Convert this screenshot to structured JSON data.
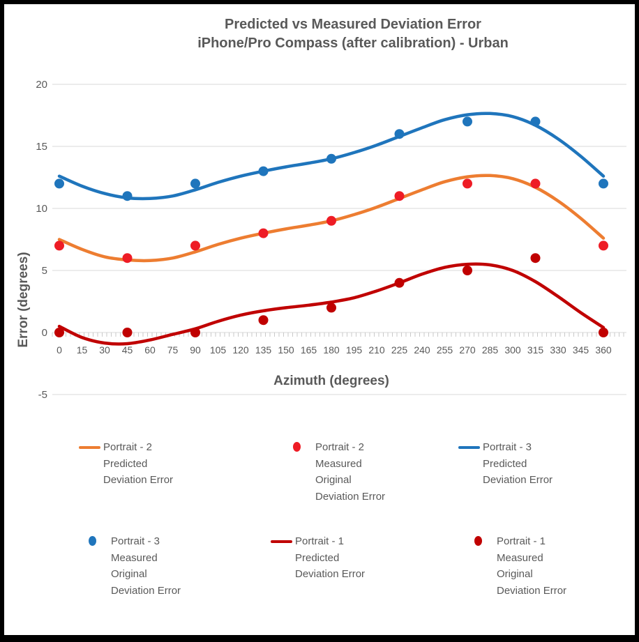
{
  "title": {
    "line1": "Predicted vs Measured Deviation Error",
    "line2": "iPhone/Pro Compass (after calibration) - Urban"
  },
  "axes": {
    "y_title": "Error (degrees)",
    "x_title": "Azimuth (degrees)"
  },
  "colors": {
    "text_gray": "#595959",
    "gridline": "#D9D9D9",
    "tick": "#C9C9C9",
    "blue": "#1F75BC",
    "orange": "#ED7D31",
    "bright_red": "#EE1C25",
    "dark_red": "#C00000"
  },
  "chart_data": {
    "type": "line",
    "title": "Predicted vs Measured Deviation Error iPhone/Pro Compass (after calibration) - Urban",
    "xlabel": "Azimuth (degrees)",
    "ylabel": "Error (degrees)",
    "xlim": [
      0,
      360
    ],
    "ylim": [
      -5,
      20
    ],
    "grid": "horizontal",
    "legend_position": "bottom",
    "x_tick_labels": [
      "0",
      "15",
      "30",
      "45",
      "60",
      "75",
      "90",
      "105",
      "120",
      "135",
      "150",
      "165",
      "180",
      "195",
      "210",
      "225",
      "240",
      "255",
      "270",
      "285",
      "300",
      "315",
      "330",
      "345",
      "360"
    ],
    "y_tick_values": [
      20,
      15,
      10,
      5,
      0,
      -5
    ],
    "gridline_values": [
      20,
      15,
      10,
      5,
      0,
      -5
    ],
    "curve_x_step": 15,
    "measured_x": [
      0,
      45,
      90,
      135,
      180,
      225,
      270,
      315,
      360
    ],
    "series": [
      {
        "name": "Portrait - 2 Predicted Deviation Error",
        "kind": "curve",
        "color": "#ED7D31",
        "values": [
          7.5,
          6.7,
          6.1,
          5.85,
          5.8,
          6.0,
          6.5,
          7.1,
          7.6,
          8.0,
          8.35,
          8.65,
          9.0,
          9.5,
          10.1,
          10.8,
          11.5,
          12.15,
          12.55,
          12.65,
          12.4,
          11.7,
          10.6,
          9.2,
          7.6
        ]
      },
      {
        "name": "Portrait - 2 Measured Original Deviation Error",
        "kind": "points",
        "color": "#EE1C25",
        "values": [
          7,
          6,
          7,
          8,
          9,
          11,
          12,
          12,
          7
        ]
      },
      {
        "name": "Portrait - 3 Predicted Deviation Error",
        "kind": "curve",
        "color": "#1F75BC",
        "values": [
          12.6,
          11.8,
          11.2,
          10.85,
          10.8,
          11.0,
          11.5,
          12.1,
          12.6,
          13.0,
          13.35,
          13.65,
          14.0,
          14.5,
          15.1,
          15.8,
          16.5,
          17.15,
          17.55,
          17.65,
          17.4,
          16.7,
          15.6,
          14.2,
          12.6
        ]
      },
      {
        "name": "Portrait - 3 Measured Original Deviation Error",
        "kind": "points",
        "color": "#1F75BC",
        "values": [
          12,
          11,
          12,
          13,
          14,
          16,
          17,
          17,
          12
        ]
      },
      {
        "name": "Portrait - 1 Predicted Deviation Error",
        "kind": "curve",
        "color": "#C00000",
        "values": [
          0.5,
          -0.4,
          -0.85,
          -0.9,
          -0.6,
          -0.15,
          0.3,
          0.9,
          1.4,
          1.75,
          2.0,
          2.2,
          2.45,
          2.8,
          3.35,
          4.0,
          4.7,
          5.25,
          5.5,
          5.45,
          5.0,
          4.1,
          2.9,
          1.6,
          0.4
        ]
      },
      {
        "name": "Portrait - 1 Measured Original Deviation Error",
        "kind": "points",
        "color": "#C00000",
        "values": [
          0,
          0,
          0,
          1,
          2,
          4,
          5,
          6,
          0
        ]
      }
    ]
  },
  "legend": {
    "items": [
      {
        "id": "portrait-2-predicted",
        "swatch": "line",
        "color": "#ED7D31",
        "lines": [
          "Portrait - 2",
          "Predicted",
          "Deviation Error"
        ]
      },
      {
        "id": "portrait-2-measured",
        "swatch": "dot",
        "color": "#EE1C25",
        "lines": [
          "Portrait - 2",
          "Measured",
          "Original",
          "Deviation Error"
        ]
      },
      {
        "id": "portrait-3-predicted",
        "swatch": "line",
        "color": "#1F75BC",
        "lines": [
          "Portrait - 3",
          "Predicted",
          "Deviation Error"
        ]
      },
      {
        "id": "portrait-3-measured",
        "swatch": "dot",
        "color": "#1F75BC",
        "lines": [
          "Portrait - 3",
          "Measured",
          "Original",
          "Deviation Error"
        ]
      },
      {
        "id": "portrait-1-predicted",
        "swatch": "line",
        "color": "#C00000",
        "lines": [
          "Portrait - 1",
          "Predicted",
          "Deviation Error"
        ]
      },
      {
        "id": "portrait-1-measured",
        "swatch": "dot",
        "color": "#C00000",
        "lines": [
          "Portrait - 1",
          "Measured",
          "Original",
          "Deviation Error"
        ]
      }
    ]
  }
}
